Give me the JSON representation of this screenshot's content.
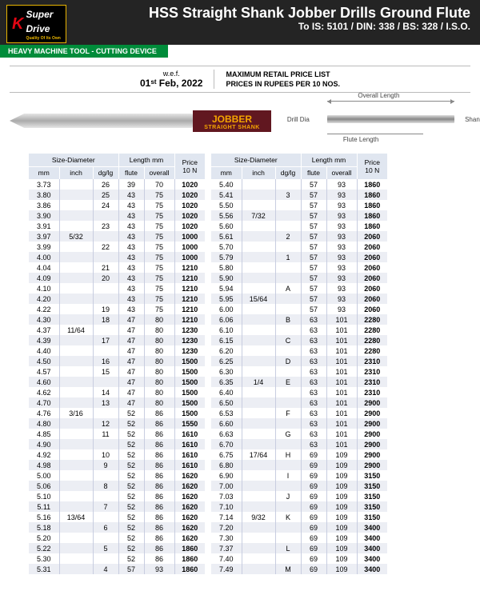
{
  "header": {
    "logo_k": "K",
    "logo_text": "Super\nDrive",
    "logo_sub": "Quality Of Its Own",
    "title": "HSS Straight Shank Jobber Drills Ground Flute",
    "subtitle": "To IS: 5101 / DIN: 338 / BS: 328 / I.S.O.",
    "green_bar": "HEAVY MACHINE TOOL - CUTTING DEVICE"
  },
  "wef": {
    "label": "w.e.f.",
    "date": "01ˢᵗ Feb, 2022",
    "mrp1": "MAXIMUM RETAIL PRICE LIST",
    "mrp2": "PRICES IN RUPEES PER 10 NOS."
  },
  "badge": {
    "title": "JOBBER",
    "sub": "STRAIGHT SHANK"
  },
  "diagram": {
    "overall": "Overall Length",
    "drill": "Drill Dia",
    "shank": "Shank Dia",
    "flute": "Flute Length"
  },
  "thead": {
    "size": "Size-Diameter",
    "length": "Length mm",
    "price": "Price\n10 N",
    "mm": "mm",
    "inch": "inch",
    "dg": "dg/lg",
    "flute": "flute",
    "overall": "overall"
  },
  "left_rows": [
    [
      "3.73",
      "",
      "26",
      "39",
      "70",
      "1020"
    ],
    [
      "3.80",
      "",
      "25",
      "43",
      "75",
      "1020"
    ],
    [
      "3.86",
      "",
      "24",
      "43",
      "75",
      "1020"
    ],
    [
      "3.90",
      "",
      "",
      "43",
      "75",
      "1020"
    ],
    [
      "3.91",
      "",
      "23",
      "43",
      "75",
      "1020"
    ],
    [
      "3.97",
      "5/32",
      "",
      "43",
      "75",
      "1000"
    ],
    [
      "3.99",
      "",
      "22",
      "43",
      "75",
      "1000"
    ],
    [
      "4.00",
      "",
      "",
      "43",
      "75",
      "1000"
    ],
    [
      "4.04",
      "",
      "21",
      "43",
      "75",
      "1210"
    ],
    [
      "4.09",
      "",
      "20",
      "43",
      "75",
      "1210"
    ],
    [
      "4.10",
      "",
      "",
      "43",
      "75",
      "1210"
    ],
    [
      "4.20",
      "",
      "",
      "43",
      "75",
      "1210"
    ],
    [
      "4.22",
      "",
      "19",
      "43",
      "75",
      "1210"
    ],
    [
      "4.30",
      "",
      "18",
      "47",
      "80",
      "1210"
    ],
    [
      "4.37",
      "11/64",
      "",
      "47",
      "80",
      "1230"
    ],
    [
      "4.39",
      "",
      "17",
      "47",
      "80",
      "1230"
    ],
    [
      "4.40",
      "",
      "",
      "47",
      "80",
      "1230"
    ],
    [
      "4.50",
      "",
      "16",
      "47",
      "80",
      "1500"
    ],
    [
      "4.57",
      "",
      "15",
      "47",
      "80",
      "1500"
    ],
    [
      "4.60",
      "",
      "",
      "47",
      "80",
      "1500"
    ],
    [
      "4.62",
      "",
      "14",
      "47",
      "80",
      "1500"
    ],
    [
      "4.70",
      "",
      "13",
      "47",
      "80",
      "1500"
    ],
    [
      "4.76",
      "3/16",
      "",
      "52",
      "86",
      "1500"
    ],
    [
      "4.80",
      "",
      "12",
      "52",
      "86",
      "1550"
    ],
    [
      "4.85",
      "",
      "11",
      "52",
      "86",
      "1610"
    ],
    [
      "4.90",
      "",
      "",
      "52",
      "86",
      "1610"
    ],
    [
      "4.92",
      "",
      "10",
      "52",
      "86",
      "1610"
    ],
    [
      "4.98",
      "",
      "9",
      "52",
      "86",
      "1610"
    ],
    [
      "5.00",
      "",
      "",
      "52",
      "86",
      "1620"
    ],
    [
      "5.06",
      "",
      "8",
      "52",
      "86",
      "1620"
    ],
    [
      "5.10",
      "",
      "",
      "52",
      "86",
      "1620"
    ],
    [
      "5.11",
      "",
      "7",
      "52",
      "86",
      "1620"
    ],
    [
      "5.16",
      "13/64",
      "",
      "52",
      "86",
      "1620"
    ],
    [
      "5.18",
      "",
      "6",
      "52",
      "86",
      "1620"
    ],
    [
      "5.20",
      "",
      "",
      "52",
      "86",
      "1620"
    ],
    [
      "5.22",
      "",
      "5",
      "52",
      "86",
      "1860"
    ],
    [
      "5.30",
      "",
      "",
      "52",
      "86",
      "1860"
    ],
    [
      "5.31",
      "",
      "4",
      "57",
      "93",
      "1860"
    ]
  ],
  "right_rows": [
    [
      "5.40",
      "",
      "",
      "57",
      "93",
      "1860"
    ],
    [
      "5.41",
      "",
      "3",
      "57",
      "93",
      "1860"
    ],
    [
      "5.50",
      "",
      "",
      "57",
      "93",
      "1860"
    ],
    [
      "5.56",
      "7/32",
      "",
      "57",
      "93",
      "1860"
    ],
    [
      "5.60",
      "",
      "",
      "57",
      "93",
      "1860"
    ],
    [
      "5.61",
      "",
      "2",
      "57",
      "93",
      "2060"
    ],
    [
      "5.70",
      "",
      "",
      "57",
      "93",
      "2060"
    ],
    [
      "5.79",
      "",
      "1",
      "57",
      "93",
      "2060"
    ],
    [
      "5.80",
      "",
      "",
      "57",
      "93",
      "2060"
    ],
    [
      "5.90",
      "",
      "",
      "57",
      "93",
      "2060"
    ],
    [
      "5.94",
      "",
      "A",
      "57",
      "93",
      "2060"
    ],
    [
      "5.95",
      "15/64",
      "",
      "57",
      "93",
      "2060"
    ],
    [
      "6.00",
      "",
      "",
      "57",
      "93",
      "2060"
    ],
    [
      "6.06",
      "",
      "B",
      "63",
      "101",
      "2280"
    ],
    [
      "6.10",
      "",
      "",
      "63",
      "101",
      "2280"
    ],
    [
      "6.15",
      "",
      "C",
      "63",
      "101",
      "2280"
    ],
    [
      "6.20",
      "",
      "",
      "63",
      "101",
      "2280"
    ],
    [
      "6.25",
      "",
      "D",
      "63",
      "101",
      "2310"
    ],
    [
      "6.30",
      "",
      "",
      "63",
      "101",
      "2310"
    ],
    [
      "6.35",
      "1/4",
      "E",
      "63",
      "101",
      "2310"
    ],
    [
      "6.40",
      "",
      "",
      "63",
      "101",
      "2310"
    ],
    [
      "6.50",
      "",
      "",
      "63",
      "101",
      "2900"
    ],
    [
      "6.53",
      "",
      "F",
      "63",
      "101",
      "2900"
    ],
    [
      "6.60",
      "",
      "",
      "63",
      "101",
      "2900"
    ],
    [
      "6.63",
      "",
      "G",
      "63",
      "101",
      "2900"
    ],
    [
      "6.70",
      "",
      "",
      "63",
      "101",
      "2900"
    ],
    [
      "6.75",
      "17/64",
      "H",
      "69",
      "109",
      "2900"
    ],
    [
      "6.80",
      "",
      "",
      "69",
      "109",
      "2900"
    ],
    [
      "6.90",
      "",
      "I",
      "69",
      "109",
      "3150"
    ],
    [
      "7.00",
      "",
      "",
      "69",
      "109",
      "3150"
    ],
    [
      "7.03",
      "",
      "J",
      "69",
      "109",
      "3150"
    ],
    [
      "7.10",
      "",
      "",
      "69",
      "109",
      "3150"
    ],
    [
      "7.14",
      "9/32",
      "K",
      "69",
      "109",
      "3150"
    ],
    [
      "7.20",
      "",
      "",
      "69",
      "109",
      "3400"
    ],
    [
      "7.30",
      "",
      "",
      "69",
      "109",
      "3400"
    ],
    [
      "7.37",
      "",
      "L",
      "69",
      "109",
      "3400"
    ],
    [
      "7.40",
      "",
      "",
      "69",
      "109",
      "3400"
    ],
    [
      "7.49",
      "",
      "M",
      "69",
      "109",
      "3400"
    ]
  ]
}
